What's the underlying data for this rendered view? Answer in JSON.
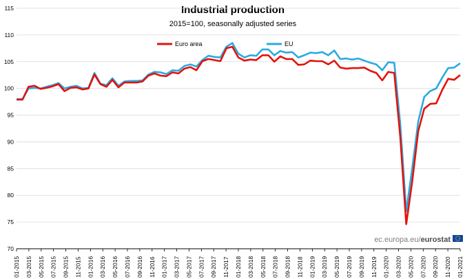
{
  "chart_data": {
    "type": "line",
    "title": "Industrial production",
    "subtitle": "2015=100, seasonally adjusted series",
    "xlabel": "",
    "ylabel": "",
    "ylim": [
      70,
      115
    ],
    "y_ticks": [
      70,
      75,
      80,
      85,
      90,
      95,
      100,
      105,
      110,
      115
    ],
    "grid": true,
    "legend_position": "top-center",
    "x_tick_labels": [
      "01-2015",
      "03-2015",
      "05-2015",
      "07-2015",
      "09-2015",
      "11-2015",
      "01-2016",
      "03-2016",
      "05-2016",
      "07-2016",
      "09-2016",
      "11-2016",
      "01-2017",
      "03-2017",
      "05-2017",
      "07-2017",
      "09-2017",
      "11-2017",
      "01-2018",
      "03-2018",
      "05-2018",
      "07-2018",
      "09-2018",
      "11-2018",
      "01-2019",
      "03-2019",
      "05-2019",
      "07-2019",
      "09-2019",
      "11-2019",
      "01-2020",
      "03-2020",
      "05-2020",
      "07-2020",
      "09-2020",
      "11-2020",
      "01-2021"
    ],
    "series": [
      {
        "name": "Euro area",
        "color": "#e3120b",
        "values": [
          97.9,
          97.9,
          100.3,
          100.5,
          99.9,
          100.1,
          100.4,
          100.8,
          99.5,
          100.1,
          100.2,
          99.8,
          100.0,
          102.6,
          100.8,
          100.3,
          101.6,
          100.2,
          101.1,
          101.1,
          101.1,
          101.3,
          102.4,
          102.8,
          102.4,
          102.3,
          103.0,
          102.8,
          103.7,
          104.0,
          103.4,
          105.1,
          105.5,
          105.3,
          105.1,
          107.5,
          107.8,
          105.8,
          105.2,
          105.4,
          105.3,
          106.2,
          106.2,
          105.0,
          106.0,
          105.5,
          105.5,
          104.4,
          104.5,
          105.2,
          105.1,
          105.1,
          104.5,
          105.2,
          103.9,
          103.7,
          103.8,
          103.8,
          103.9,
          103.3,
          102.9,
          101.5,
          103.1,
          102.9,
          91.0,
          74.6,
          82.6,
          92.0,
          96.2,
          97.1,
          97.2,
          99.7,
          101.8,
          101.6,
          102.5
        ]
      },
      {
        "name": "EU",
        "color": "#29aae2",
        "values": [
          98.0,
          98.0,
          100.0,
          100.1,
          100.0,
          100.3,
          100.6,
          101.0,
          100.0,
          100.3,
          100.5,
          100.0,
          100.1,
          102.9,
          100.9,
          100.6,
          101.9,
          100.5,
          101.3,
          101.4,
          101.4,
          101.5,
          102.6,
          103.1,
          103.0,
          102.7,
          103.4,
          103.3,
          104.2,
          104.5,
          104.1,
          105.3,
          106.1,
          105.9,
          105.8,
          107.8,
          108.5,
          106.5,
          105.8,
          106.2,
          106.1,
          107.3,
          107.3,
          106.2,
          107.0,
          106.7,
          106.8,
          105.8,
          106.2,
          106.7,
          106.6,
          106.8,
          106.2,
          107.1,
          105.5,
          105.6,
          105.4,
          105.6,
          105.2,
          104.8,
          104.5,
          103.4,
          104.9,
          104.8,
          93.4,
          77.0,
          85.1,
          93.8,
          98.4,
          99.5,
          100.0,
          102.0,
          103.8,
          103.9,
          104.7
        ]
      }
    ]
  },
  "source": {
    "prefix": "ec.europa.eu/",
    "brand": "eurostat"
  },
  "colors": {
    "grid": "#d9d9d9",
    "axis": "#000000",
    "flag_blue": "#0e47a1",
    "flag_stars": "#ffde00"
  }
}
